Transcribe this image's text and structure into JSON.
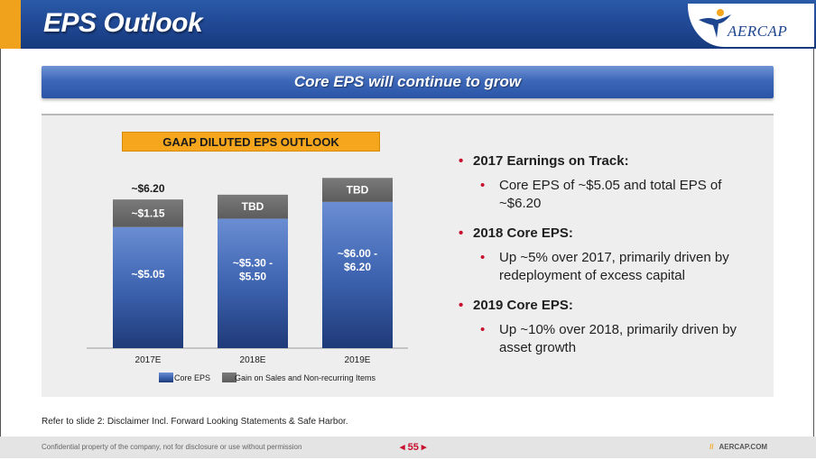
{
  "header": {
    "title": "EPS Outlook",
    "logo_text": "AERCAP"
  },
  "banner": {
    "text": "Core EPS will continue to grow"
  },
  "chart_title": "GAAP DILUTED EPS OUTLOOK",
  "chart_data": {
    "type": "bar",
    "stacked": true,
    "title": "GAAP DILUTED EPS OUTLOOK",
    "categories": [
      "2017E",
      "2018E",
      "2019E"
    ],
    "series": [
      {
        "name": "Core EPS",
        "color": "#2c5096",
        "values": [
          5.05,
          5.4,
          6.1
        ],
        "labels": [
          "~$5.05",
          "~$5.30 -\n$5.50",
          "~$6.00 -\n$6.20"
        ]
      },
      {
        "name": "Gain on Sales and Non-recurring Items",
        "color": "#6d6d6d",
        "values": [
          1.15,
          1.0,
          1.0
        ],
        "labels": [
          "~$1.15",
          "TBD",
          "TBD"
        ]
      }
    ],
    "total_labels": [
      "~$6.20",
      "",
      ""
    ],
    "ylim": [
      0,
      8.2
    ],
    "legend_position": "bottom",
    "grid": false
  },
  "bullets": [
    {
      "heading": "2017 Earnings on Track:",
      "sub": "Core EPS of ~$5.05 and total EPS of ~$6.20"
    },
    {
      "heading": "2018 Core EPS:",
      "sub": "Up ~5% over 2017, primarily driven by redeployment of excess capital"
    },
    {
      "heading": "2019 Core EPS:",
      "sub": "Up ~10% over 2018, primarily driven by asset growth"
    }
  ],
  "disclaimer": "Refer to slide 2: Disclaimer Incl. Forward Looking Statements & Safe Harbor.",
  "footer": {
    "left": "Confidential property of the company, not for disclosure or use without permission",
    "page": "55",
    "right": "AERCAP.COM"
  }
}
